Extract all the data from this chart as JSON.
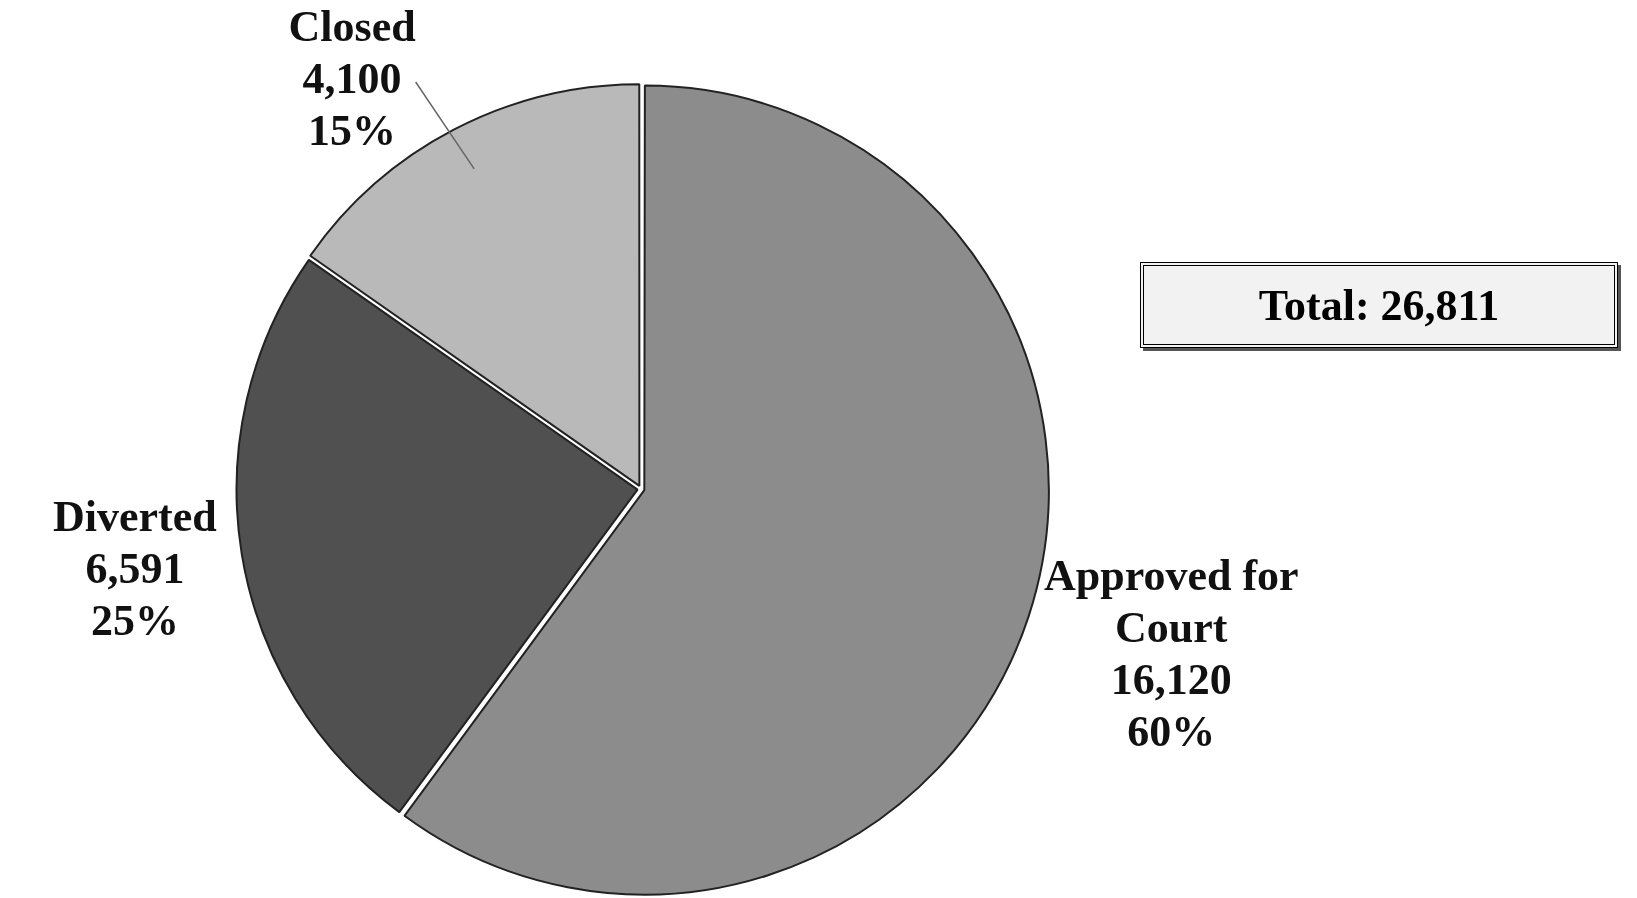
{
  "chart_data": {
    "type": "pie",
    "categories": [
      "Approved for\nCourt",
      "Diverted",
      "Closed"
    ],
    "values": [
      16120,
      6591,
      4100
    ],
    "value_labels": [
      "16,120\n60%",
      "6,591\n25%",
      "4,100\n15%"
    ],
    "colors": [
      "#8c8c8c",
      "#505050",
      "#b9b9b9"
    ],
    "annotations": [
      "Total: 26,811"
    ],
    "legend": false
  }
}
